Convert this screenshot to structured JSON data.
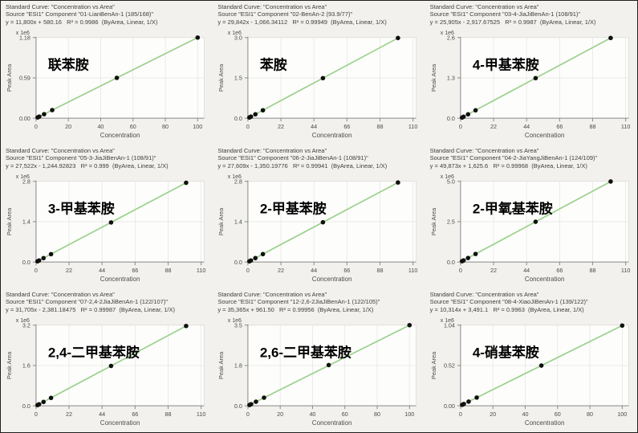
{
  "figure": {
    "description_labels": {
      "xlabel": "Concentration",
      "ylabel": "Peak Area",
      "scale_note": "x 1e6"
    }
  },
  "colors": {
    "line_green": "#9bd18c",
    "point_black": "#101010",
    "grid": "#e6e6e3",
    "axis": "#8a8a8a",
    "plot_bg": "#fdfdfc",
    "panel_bg": "#f2f1ed",
    "header_text": "#3e3e3e",
    "tick_text": "#4a4a4a"
  },
  "chart_data": [
    {
      "type": "scatter",
      "header": "Standard Curve: \"Concentration vs Area\"",
      "source": "Source \"ESI1\" Component \"01-LianBenAn-1 (185/168)\"",
      "equation": "y = 11,800x + 580.16   R² = 0.9986  (ByArea, Linear, 1/X)",
      "label": "联苯胺",
      "xlabel": "Concentration",
      "ylabel": "Peak Area",
      "scale_note": "x 1e6",
      "x": [
        1,
        2,
        5,
        10,
        50,
        100
      ],
      "y": [
        12380,
        24180,
        59580,
        118580,
        590580,
        1180580
      ],
      "fit": {
        "slope": 11800,
        "intercept": 580.16,
        "r2": 0.9986,
        "weighting": "1/X",
        "mode": "ByArea, Linear"
      },
      "xticks": [
        0,
        20,
        40,
        60,
        80,
        100
      ],
      "ytick_labels": [
        "0.00",
        "0.59",
        "1.18"
      ],
      "xlim": [
        0,
        104
      ],
      "ylim": [
        0,
        1180000
      ]
    },
    {
      "type": "scatter",
      "header": "Standard Curve: \"Concentration vs Area\"",
      "source": "Source \"ESI1\" Component \"02-BenAn-2 (93.9/77)\"",
      "equation": "y = 29,842x - 1,066.34112   R² = 0.99949  (ByArea, Linear, 1/X)",
      "label": "苯胺",
      "xlabel": "Concentration",
      "ylabel": "Peak Area",
      "scale_note": "x 1e6",
      "x": [
        1,
        2,
        5,
        10,
        50,
        100
      ],
      "y": [
        28776,
        58618,
        148144,
        297354,
        1491034,
        2983134
      ],
      "fit": {
        "slope": 29842,
        "intercept": -1066.34112,
        "r2": 0.99949,
        "weighting": "1/X",
        "mode": "ByArea, Linear"
      },
      "xticks": [
        0,
        22,
        44,
        66,
        88,
        110
      ],
      "ytick_labels": [
        "0.0",
        "1.5",
        "3.0"
      ],
      "xlim": [
        0,
        112
      ],
      "ylim": [
        0,
        3000000
      ]
    },
    {
      "type": "scatter",
      "header": "Standard Curve: \"Concentration vs Area\"",
      "source": "Source \"ESI1\" Component \"03-4-JiaJiBenAn-1 (108/91)\"",
      "equation": "y = 25,905x - 2,917.67525   R² = 0.9987  (ByArea, Linear, 1/X)",
      "label": "4-甲基苯胺",
      "xlabel": "Concentration",
      "ylabel": "Peak Area",
      "scale_note": "x 1e6",
      "x": [
        1,
        2,
        5,
        10,
        50,
        100
      ],
      "y": [
        22987,
        48892,
        126607,
        256132,
        1292332,
        2587582
      ],
      "fit": {
        "slope": 25905,
        "intercept": -2917.67525,
        "r2": 0.9987,
        "weighting": "1/X",
        "mode": "ByArea, Linear"
      },
      "xticks": [
        0,
        22,
        44,
        66,
        88,
        110
      ],
      "ytick_labels": [
        "0.0",
        "1.3",
        "2.6"
      ],
      "xlim": [
        0,
        112
      ],
      "ylim": [
        0,
        2600000
      ]
    },
    {
      "type": "scatter",
      "header": "Standard Curve: \"Concentration vs Area\"",
      "source": "Source \"ESI1\" Component \"05-3-JiaJiBenAn-1 (108/91)\"",
      "equation": "y = 27,522x - 1,244.92823   R² = 0.999  (ByArea, Linear, 1/X)",
      "label": "3-甲基苯胺",
      "xlabel": "Concentration",
      "ylabel": "Peak Area",
      "scale_note": "x 1e6",
      "x": [
        1,
        2,
        5,
        10,
        50,
        100
      ],
      "y": [
        26277,
        53799,
        136365,
        273975,
        1374855,
        2750955
      ],
      "fit": {
        "slope": 27522,
        "intercept": -1244.92823,
        "r2": 0.999,
        "weighting": "1/X",
        "mode": "ByArea, Linear"
      },
      "xticks": [
        0,
        22,
        44,
        66,
        88,
        110
      ],
      "ytick_labels": [
        "0.0",
        "1.4",
        "2.8"
      ],
      "xlim": [
        0,
        112
      ],
      "ylim": [
        0,
        2800000
      ]
    },
    {
      "type": "scatter",
      "header": "Standard Curve: \"Concentration vs Area\"",
      "source": "Source \"ESI1\" Component \"06-2-JiaJiBenAn-1 (108/91)\"",
      "equation": "y = 27,609x - 1,350.19776   R² = 0.99941  (ByArea, Linear, 1/X)",
      "label": "2-甲基苯胺",
      "xlabel": "Concentration",
      "ylabel": "Peak Area",
      "scale_note": "x 1e6",
      "x": [
        1,
        2,
        5,
        10,
        50,
        100
      ],
      "y": [
        26259,
        53868,
        136695,
        274740,
        1379100,
        2759550
      ],
      "fit": {
        "slope": 27609,
        "intercept": -1350.19776,
        "r2": 0.99941,
        "weighting": "1/X",
        "mode": "ByArea, Linear"
      },
      "xticks": [
        0,
        22,
        44,
        66,
        88,
        110
      ],
      "ytick_labels": [
        "0.0",
        "1.4",
        "2.8"
      ],
      "xlim": [
        0,
        112
      ],
      "ylim": [
        0,
        2800000
      ]
    },
    {
      "type": "scatter",
      "header": "Standard Curve: \"Concentration vs Area\"",
      "source": "Source \"ESI1\" Component \"04-2-JiaYangJiBenAn-1 (124/109)\"",
      "equation": "y = 49,873x + 1,625.6   R² = 0.99968  (ByArea, Linear, 1/X)",
      "label": "2-甲氧基苯胺",
      "xlabel": "Concentration",
      "ylabel": "Peak Area",
      "scale_note": "x 1e6",
      "x": [
        1,
        2,
        5,
        10,
        50,
        100
      ],
      "y": [
        51499,
        101372,
        250991,
        500356,
        2495276,
        4988926
      ],
      "fit": {
        "slope": 49873,
        "intercept": 1625.6,
        "r2": 0.99968,
        "weighting": "1/X",
        "mode": "ByArea, Linear"
      },
      "xticks": [
        0,
        22,
        44,
        66,
        88,
        110
      ],
      "ytick_labels": [
        "0.0",
        "2.5",
        "5.0"
      ],
      "xlim": [
        0,
        112
      ],
      "ylim": [
        0,
        5000000
      ]
    },
    {
      "type": "scatter",
      "header": "Standard Curve: \"Concentration vs Area\"",
      "source": "Source \"ESI1\" Component \"07-2,4-2JiaJiBenAn-1 (122/107)\"",
      "equation": "y = 31,705x - 2,381.18475   R² = 0.99987  (ByArea, Linear, 1/X)",
      "label": "2,4-二甲基苯胺",
      "xlabel": "Concentration",
      "ylabel": "Peak Area",
      "scale_note": "x 1e6",
      "x": [
        1,
        2,
        5,
        10,
        50,
        100
      ],
      "y": [
        29324,
        61029,
        156144,
        314669,
        1582869,
        3168119
      ],
      "fit": {
        "slope": 31705,
        "intercept": -2381.18475,
        "r2": 0.99987,
        "weighting": "1/X",
        "mode": "ByArea, Linear"
      },
      "xticks": [
        0,
        22,
        44,
        66,
        88,
        110
      ],
      "ytick_labels": [
        "0.0",
        "1.6",
        "3.2"
      ],
      "xlim": [
        0,
        112
      ],
      "ylim": [
        0,
        3200000
      ]
    },
    {
      "type": "scatter",
      "header": "Standard Curve: \"Concentration vs Area\"",
      "source": "Source \"ESI1\" Component \"12-2,6-2JiaJiBenAn-1 (122/105)\"",
      "equation": "y = 35,365x + 961.50   R² = 0.99956  (ByArea, Linear, 1/X)",
      "label": "2,6-二甲基苯胺",
      "xlabel": "Concentration",
      "ylabel": "Peak Area",
      "scale_note": "x 1e6",
      "x": [
        1,
        2,
        5,
        10,
        50,
        100
      ],
      "y": [
        36327,
        71692,
        177787,
        354612,
        1769212,
        3537462
      ],
      "fit": {
        "slope": 35365,
        "intercept": 961.5,
        "r2": 0.99956,
        "weighting": "1/X",
        "mode": "ByArea, Linear"
      },
      "xticks": [
        0,
        20,
        40,
        60,
        80,
        100
      ],
      "ytick_labels": [
        "0.0",
        "1.8",
        "3.5"
      ],
      "xlim": [
        0,
        104
      ],
      "ylim": [
        0,
        3500000
      ]
    },
    {
      "type": "scatter",
      "header": "Standard Curve: \"Concentration vs Area\"",
      "source": "Source \"ESI1\" Component \"08-4-XiaoJiBenAn-1 (139/122)\"",
      "equation": "y = 10,314x + 3,491.1   R² = 0.9963  (ByArea, Linear, 1/X)",
      "label": "4-硝基苯胺",
      "xlabel": "Concentration",
      "ylabel": "Peak Area",
      "scale_note": "x 1e6",
      "x": [
        1,
        2,
        5,
        10,
        50,
        100
      ],
      "y": [
        13805,
        24119,
        55061,
        106631,
        519191,
        1034891
      ],
      "fit": {
        "slope": 10314,
        "intercept": 3491.1,
        "r2": 0.9963,
        "weighting": "1/X",
        "mode": "ByArea, Linear"
      },
      "xticks": [
        0,
        20,
        40,
        60,
        80,
        100
      ],
      "ytick_labels": [
        "0.00",
        "0.52",
        "1.04"
      ],
      "xlim": [
        0,
        104
      ],
      "ylim": [
        0,
        1040000
      ]
    }
  ]
}
